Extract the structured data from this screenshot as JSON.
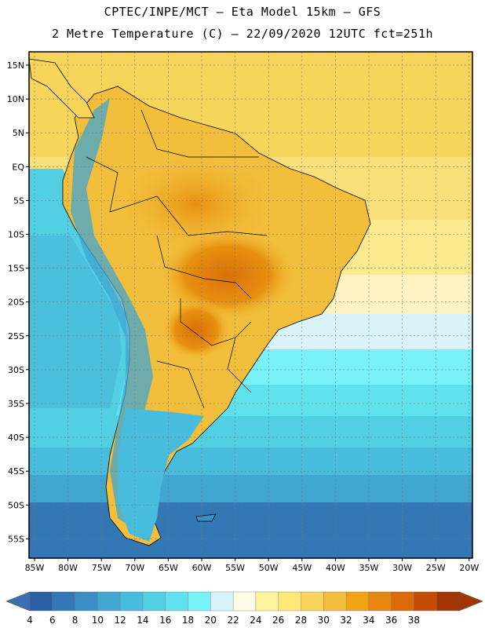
{
  "header": {
    "line1": "CPTEC/INPE/MCT –  Eta Model 15km – GFS",
    "line2": "2 Metre Temperature (C) – 22/09/2020 12UTC fct=251h"
  },
  "axes": {
    "lat_labels": [
      "15N",
      "10N",
      "5N",
      "EQ",
      "5S",
      "10S",
      "15S",
      "20S",
      "25S",
      "30S",
      "35S",
      "40S",
      "45S",
      "50S",
      "55S"
    ],
    "lon_labels": [
      "85W",
      "80W",
      "75W",
      "70W",
      "65W",
      "60W",
      "55W",
      "50W",
      "45W",
      "40W",
      "35W",
      "30W",
      "25W",
      "20W"
    ]
  },
  "colorbar": {
    "labels": [
      "4",
      "6",
      "8",
      "10",
      "12",
      "14",
      "16",
      "18",
      "20",
      "22",
      "24",
      "26",
      "28",
      "30",
      "32",
      "34",
      "36",
      "38"
    ],
    "colors": [
      "#2a5fa5",
      "#3377b5",
      "#3a8ec4",
      "#41a6d0",
      "#48bcdc",
      "#52cfe2",
      "#5fe2ee",
      "#79f2f7",
      "#d8f4fa",
      "#fffbe6",
      "#fff3a0",
      "#fde877",
      "#f7d55a",
      "#f2bf3c",
      "#f0a415",
      "#e7870f",
      "#dc6a08",
      "#c44b04",
      "#a33503"
    ],
    "left_color": "#3a6fb0",
    "right_color": "#a33503"
  }
}
